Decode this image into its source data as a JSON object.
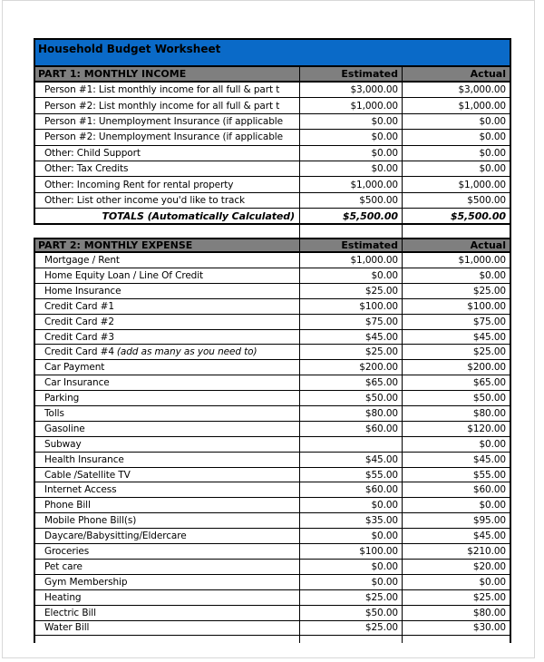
{
  "title": "Household Budget Worksheet",
  "columns": {
    "estimated": "Estimated",
    "actual": "Actual"
  },
  "colors": {
    "title_bar": "#0a6ac8",
    "section_bar": "#7f7f7f",
    "grid": "#000000",
    "cell_bg": "#ffffff"
  },
  "part1": {
    "header": "PART 1: MONTHLY INCOME",
    "rows": [
      {
        "label": "Person #1: List monthly income for all full & part t",
        "estimated": "$3,000.00",
        "actual": "$3,000.00"
      },
      {
        "label": "Person #2: List monthly income for all full & part t",
        "estimated": "$1,000.00",
        "actual": "$1,000.00"
      },
      {
        "label": "Person #1: Unemployment Insurance (if applicable",
        "estimated": "$0.00",
        "actual": "$0.00"
      },
      {
        "label": "Person #2: Unemployment Insurance (if applicable",
        "estimated": "$0.00",
        "actual": "$0.00"
      },
      {
        "label": "Other: Child Support",
        "estimated": "$0.00",
        "actual": "$0.00"
      },
      {
        "label": "Other: Tax Credits",
        "estimated": "$0.00",
        "actual": "$0.00"
      },
      {
        "label": "Other: Incoming Rent for rental property",
        "estimated": "$1,000.00",
        "actual": "$1,000.00"
      },
      {
        "label": "Other: List other income you'd like to  track",
        "estimated": "$500.00",
        "actual": "$500.00"
      }
    ],
    "totals": {
      "label": "TOTALS (Automatically Calculated)",
      "estimated": "$5,500.00",
      "actual": "$5,500.00"
    }
  },
  "part2": {
    "header": "PART 2: MONTHLY EXPENSE",
    "rows": [
      {
        "label": "Mortgage / Rent",
        "estimated": "$1,000.00",
        "actual": "$1,000.00"
      },
      {
        "label": "Home Equity Loan / Line Of Credit",
        "estimated": "$0.00",
        "actual": "$0.00"
      },
      {
        "label": "Home Insurance",
        "estimated": "$25.00",
        "actual": "$25.00"
      },
      {
        "label": "Credit Card #1",
        "estimated": "$100.00",
        "actual": "$100.00"
      },
      {
        "label": "Credit Card #2",
        "estimated": "$75.00",
        "actual": "$75.00"
      },
      {
        "label": "Credit Card #3",
        "estimated": "$45.00",
        "actual": "$45.00"
      },
      {
        "label": "Credit Card #4",
        "note": "(add as many as you need to)",
        "estimated": "$25.00",
        "actual": "$25.00"
      },
      {
        "label": "Car Payment",
        "estimated": "$200.00",
        "actual": "$200.00"
      },
      {
        "label": "Car Insurance",
        "estimated": "$65.00",
        "actual": "$65.00"
      },
      {
        "label": "Parking",
        "estimated": "$50.00",
        "actual": "$50.00"
      },
      {
        "label": "Tolls",
        "estimated": "$80.00",
        "actual": "$80.00"
      },
      {
        "label": "Gasoline",
        "estimated": "$60.00",
        "actual": "$120.00"
      },
      {
        "label": "Subway",
        "estimated": "",
        "actual": "$0.00"
      },
      {
        "label": "Health Insurance",
        "estimated": "$45.00",
        "actual": "$45.00"
      },
      {
        "label": "Cable /Satellite TV",
        "estimated": "$55.00",
        "actual": "$55.00"
      },
      {
        "label": "Internet Access",
        "estimated": "$60.00",
        "actual": "$60.00"
      },
      {
        "label": "Phone Bill",
        "estimated": "$0.00",
        "actual": "$0.00"
      },
      {
        "label": "Mobile Phone Bill(s)",
        "estimated": "$35.00",
        "actual": "$95.00"
      },
      {
        "label": "Daycare/Babysitting/Eldercare",
        "estimated": "$0.00",
        "actual": "$45.00"
      },
      {
        "label": "Groceries",
        "estimated": "$100.00",
        "actual": "$210.00"
      },
      {
        "label": "Pet care",
        "estimated": "$0.00",
        "actual": "$20.00"
      },
      {
        "label": "Gym Membership",
        "estimated": "$0.00",
        "actual": "$0.00"
      },
      {
        "label": "Heating",
        "estimated": "$25.00",
        "actual": "$25.00"
      },
      {
        "label": "Electric Bill",
        "estimated": "$50.00",
        "actual": "$80.00"
      },
      {
        "label": "Water Bill",
        "estimated": "$25.00",
        "actual": "$30.00"
      }
    ]
  }
}
